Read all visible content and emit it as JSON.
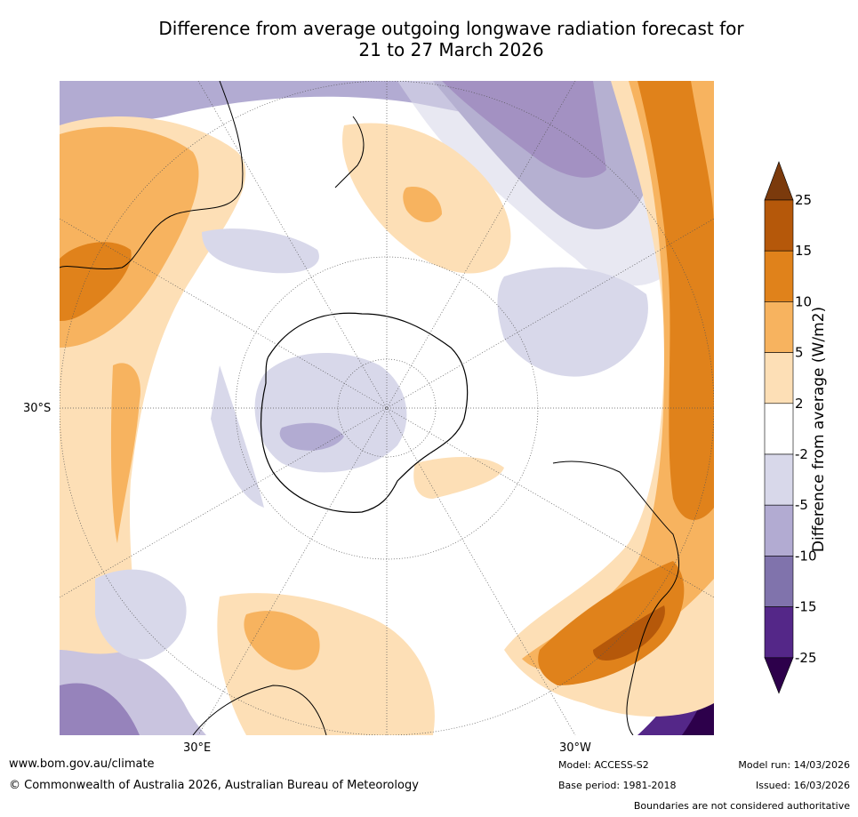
{
  "title": {
    "line1": "Difference from average outgoing longwave radiation forecast for",
    "line2": "21 to 27 March 2026"
  },
  "map": {
    "lat_label": "30°S",
    "lon_labels": [
      "30°E",
      "30°W"
    ]
  },
  "colorbar": {
    "title": "Difference from average (W/m2)",
    "ticks": [
      "25",
      "15",
      "10",
      "5",
      "2",
      "-2",
      "-5",
      "-10",
      "-15",
      "-25"
    ],
    "colors": [
      "#7b3a0c",
      "#b5580a",
      "#e0821b",
      "#f7b35f",
      "#fddfb6",
      "#ffffff",
      "#d8d8ea",
      "#b2abd2",
      "#8073ac",
      "#542788",
      "#2d004b"
    ]
  },
  "footer": {
    "website": "www.bom.gov.au/climate",
    "copyright": "© Commonwealth of Australia 2026, Australian Bureau of Meteorology",
    "model": "Model: ACCESS-S2",
    "model_run": "Model run: 14/03/2026",
    "base_period": "Base period: 1981-2018",
    "issued": "Issued: 16/03/2026",
    "disclaimer": "Boundaries are not considered authoritative"
  }
}
